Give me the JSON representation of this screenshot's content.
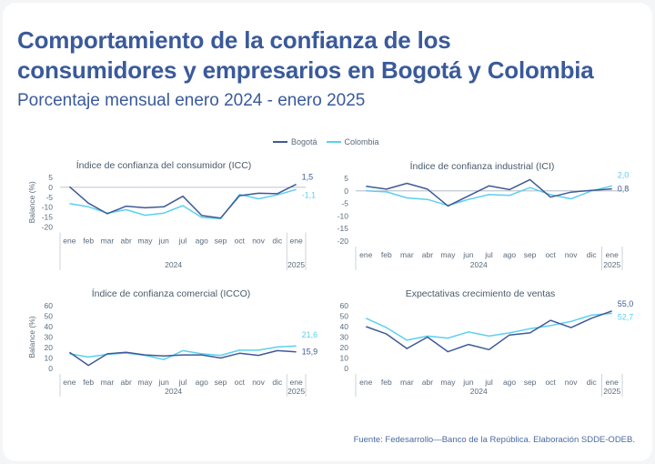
{
  "title_line1": "Comportamiento de la confianza de los",
  "title_line2": "consumidores y empresarios en Bogotá y Colombia",
  "subtitle": "Porcentaje mensual enero 2024 - enero 2025",
  "legend": [
    {
      "name": "Bogotá",
      "color": "#3f5a96"
    },
    {
      "name": "Colombia",
      "color": "#5bd0f0"
    }
  ],
  "source": "Fuente: Fedesarrollo—Banco de la República. Elaboración SDDE-ODEB.",
  "colors": {
    "bogota": "#3f5a96",
    "colombia": "#5bd0f0",
    "axis": "#8a96a6",
    "title": "#3a5a9a"
  },
  "chart_data": [
    {
      "type": "line",
      "title": "Índice de confianza del consumidor (ICC)",
      "ylabel": "Balance (%)",
      "categories": [
        "ene",
        "feb",
        "mar",
        "abr",
        "may",
        "jun",
        "jul",
        "ago",
        "sep",
        "oct",
        "nov",
        "dic",
        "ene"
      ],
      "year_labels": [
        "2024",
        "2025"
      ],
      "yticks": [
        "5",
        "0",
        "-5",
        "-10",
        "-15",
        "-20"
      ],
      "ylim": [
        -20,
        5
      ],
      "series": [
        {
          "name": "Bogotá",
          "values": [
            0.3,
            -8,
            -13.3,
            -9.5,
            -10.3,
            -9.8,
            -4.5,
            -14.2,
            -15.5,
            -4.2,
            -3,
            -3.2,
            1.5
          ]
        },
        {
          "name": "Colombia",
          "values": [
            -8.2,
            -9.8,
            -13,
            -11.3,
            -14.1,
            -13,
            -9.2,
            -15.2,
            -15.8,
            -3.6,
            -5.8,
            -3.8,
            -1.1
          ]
        }
      ],
      "end_labels": [
        "1,5",
        "-1,1"
      ]
    },
    {
      "type": "line",
      "title": "Índice de confianza industrial (ICI)",
      "ylabel": "",
      "categories": [
        "ene",
        "feb",
        "mar",
        "abr",
        "may",
        "jun",
        "jul",
        "ago",
        "sep",
        "oct",
        "nov",
        "dic",
        "ene"
      ],
      "year_labels": [
        "2024",
        "2025"
      ],
      "yticks": [
        "5",
        "0",
        "-5",
        "-10",
        "-15",
        "-20"
      ],
      "ylim": [
        -20,
        5
      ],
      "series": [
        {
          "name": "Bogotá",
          "values": [
            1.8,
            0.7,
            3,
            0.7,
            -6,
            -2,
            2,
            0.5,
            4.5,
            -2.5,
            -0.5,
            0.2,
            0.8
          ]
        },
        {
          "name": "Colombia",
          "values": [
            0,
            -0.4,
            -2.8,
            -3.4,
            -5.8,
            -3.4,
            -1.5,
            -1.8,
            1.3,
            -1.5,
            -3.2,
            0,
            2.0
          ]
        }
      ],
      "end_labels": [
        "0,8",
        "2,0"
      ]
    },
    {
      "type": "line",
      "title": "Índice de confianza comercial (ICCO)",
      "ylabel": "Balance (%)",
      "categories": [
        "ene",
        "feb",
        "mar",
        "abr",
        "may",
        "jun",
        "jul",
        "ago",
        "sep",
        "oct",
        "nov",
        "dic",
        "ene"
      ],
      "year_labels": [
        "2024",
        "2025"
      ],
      "yticks": [
        "60",
        "50",
        "40",
        "30",
        "20",
        "10",
        "0"
      ],
      "ylim": [
        0,
        60
      ],
      "series": [
        {
          "name": "Bogotá",
          "values": [
            15.5,
            3,
            14,
            15.5,
            13,
            12,
            13,
            13,
            10,
            14.5,
            12.5,
            17,
            15.9
          ]
        },
        {
          "name": "Colombia",
          "values": [
            14,
            11,
            13.5,
            14.8,
            12.5,
            8.5,
            17,
            14,
            12.5,
            17.5,
            17.5,
            20.5,
            21.6
          ]
        }
      ],
      "end_labels": [
        "15,9",
        "21,6"
      ]
    },
    {
      "type": "line",
      "title": "Expectativas crecimiento de ventas",
      "ylabel": "",
      "categories": [
        "ene",
        "feb",
        "mar",
        "abr",
        "may",
        "jun",
        "jul",
        "ago",
        "sep",
        "oct",
        "nov",
        "dic",
        "ene"
      ],
      "year_labels": [
        "2024",
        "2025"
      ],
      "yticks": [
        "60",
        "50",
        "40",
        "30",
        "20",
        "10",
        "0"
      ],
      "ylim": [
        0,
        60
      ],
      "series": [
        {
          "name": "Bogotá",
          "values": [
            40,
            33,
            19,
            30,
            16,
            23,
            18,
            32,
            34,
            46,
            39,
            48,
            55.0
          ]
        },
        {
          "name": "Colombia",
          "values": [
            48,
            39,
            27,
            31,
            29,
            35,
            31,
            34,
            38,
            41,
            45,
            51,
            52.7
          ]
        }
      ],
      "end_labels": [
        "55,0",
        "52,7"
      ]
    }
  ]
}
